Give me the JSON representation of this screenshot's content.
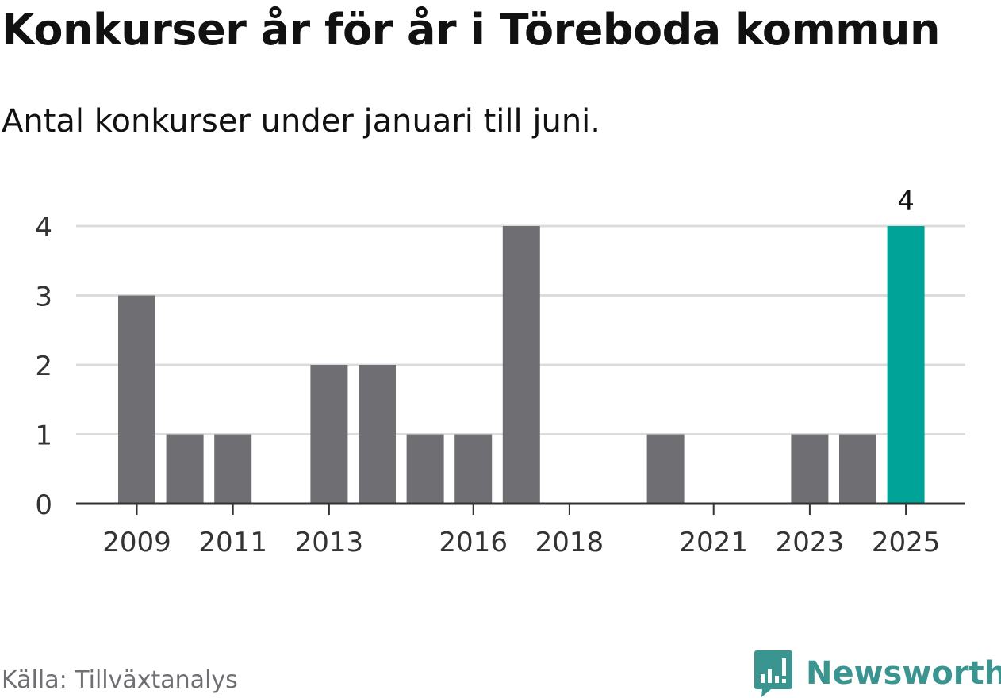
{
  "header": {
    "title": "Konkurser år för år i Töreboda kommun",
    "subtitle": "Antal konkurser under januari till juni."
  },
  "footer": {
    "source": "Källa: Tillväxtanalys",
    "brand": "Newsworthy"
  },
  "colors": {
    "bar": "#6f6e73",
    "highlight": "#00a398",
    "grid": "#dcdcdc",
    "axis": "#333333",
    "text": "#333333",
    "brand": "#3a9490"
  },
  "icons": {
    "brand_logo": "newsworthy-bar-chart-bubble-icon"
  },
  "chart_data": {
    "type": "bar",
    "categories": [
      "2009",
      "2010",
      "2011",
      "2012",
      "2013",
      "2014",
      "2015",
      "2016",
      "2017",
      "2018",
      "2019",
      "2020",
      "2021",
      "2022",
      "2023",
      "2024",
      "2025"
    ],
    "values": [
      3,
      1,
      1,
      0,
      2,
      2,
      1,
      1,
      4,
      0,
      0,
      1,
      0,
      0,
      1,
      1,
      4
    ],
    "x_tick_labels": [
      "2009",
      "2011",
      "2013",
      "2016",
      "2018",
      "2021",
      "2023",
      "2025"
    ],
    "y_ticks": [
      0,
      1,
      2,
      3,
      4
    ],
    "ylim": [
      0,
      4
    ],
    "highlight": {
      "category": "2025",
      "label": "4"
    },
    "grid": true,
    "legend": "none",
    "xlabel": "",
    "ylabel": ""
  }
}
